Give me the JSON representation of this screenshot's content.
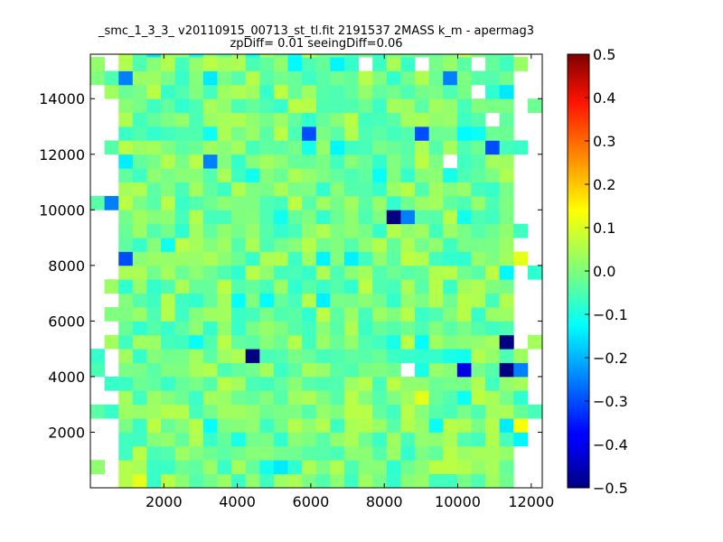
{
  "chart_data": {
    "type": "heatmap",
    "title_line1": "_smc_1_3_3_ v20110915_00713_st_tl.fit 2191537 2MASS k_m - apermag3",
    "title_line2": "zpDiff= 0.01 seeingDiff=0.06",
    "xlim": [
      0,
      12300
    ],
    "ylim": [
      0,
      15600
    ],
    "x_ticks": [
      2000,
      4000,
      6000,
      8000,
      10000,
      12000
    ],
    "y_ticks": [
      2000,
      4000,
      6000,
      8000,
      10000,
      12000,
      14000
    ],
    "x_tick_labels": [
      "2000",
      "4000",
      "6000",
      "8000",
      "10000",
      "12000"
    ],
    "y_tick_labels": [
      "2000",
      "4000",
      "6000",
      "8000",
      "10000",
      "12000",
      "14000"
    ],
    "colorbar": {
      "colormap": "jet",
      "vmin": -0.5,
      "vmax": 0.5,
      "ticks": [
        -0.5,
        -0.4,
        -0.3,
        -0.2,
        -0.1,
        0.0,
        0.1,
        0.2,
        0.3,
        0.4,
        0.5
      ],
      "tick_labels": [
        "−0.5",
        "−0.4",
        "−0.3",
        "−0.2",
        "−0.1",
        "0.0",
        "0.1",
        "0.2",
        "0.3",
        "0.4",
        "0.5"
      ]
    },
    "grid": false,
    "cell_size": [
      384,
      500
    ],
    "notable_cells": [
      {
        "x": 8300,
        "y": 9700,
        "value": -0.5
      },
      {
        "x": 4500,
        "y": 4600,
        "value": -0.5
      },
      {
        "x": 11400,
        "y": 5100,
        "value": -0.5
      },
      {
        "x": 11400,
        "y": 4100,
        "value": -0.5
      },
      {
        "x": 10300,
        "y": 4100,
        "value": -0.4
      },
      {
        "x": 6100,
        "y": 12600,
        "value": -0.3
      },
      {
        "x": 9100,
        "y": 12600,
        "value": -0.3
      },
      {
        "x": 1100,
        "y": 8100,
        "value": -0.3
      },
      {
        "x": 1100,
        "y": 14600,
        "value": -0.25
      },
      {
        "x": 3300,
        "y": 11600,
        "value": -0.25
      },
      {
        "x": 9700,
        "y": 14600,
        "value": -0.25
      },
      {
        "x": 10900,
        "y": 12100,
        "value": -0.3
      },
      {
        "x": 600,
        "y": 10100,
        "value": -0.25
      },
      {
        "x": 11800,
        "y": 4100,
        "value": -0.25
      },
      {
        "x": 8700,
        "y": 9600,
        "value": -0.25
      },
      {
        "x": 1500,
        "y": 300,
        "value": 0.1
      },
      {
        "x": 11800,
        "y": 2100,
        "value": 0.12
      },
      {
        "x": 11800,
        "y": 8100,
        "value": 0.1
      },
      {
        "x": 9100,
        "y": 3100,
        "value": 0.1
      },
      {
        "x": 8500,
        "y": 8100,
        "value": 0.06
      }
    ],
    "missing_cells": [
      {
        "x": 7500,
        "y": 15300
      },
      {
        "x": 9100,
        "y": 15300
      },
      {
        "x": 10500,
        "y": 15300
      },
      {
        "x": 10500,
        "y": 14300
      },
      {
        "x": 11100,
        "y": 13100
      },
      {
        "x": 9700,
        "y": 11600
      },
      {
        "x": 8700,
        "y": 4100
      }
    ]
  }
}
